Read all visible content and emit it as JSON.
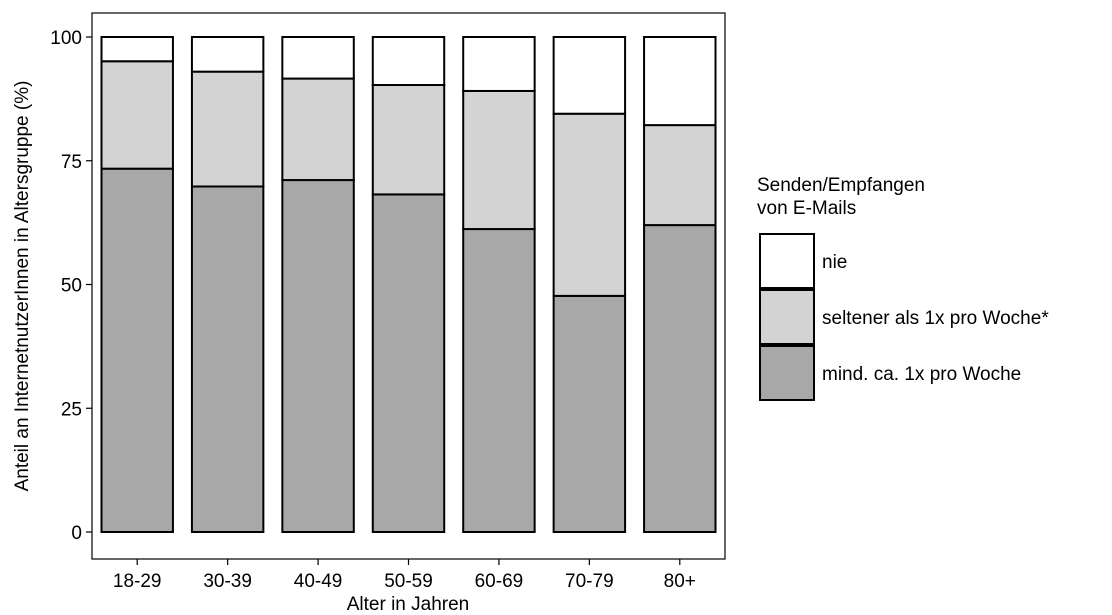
{
  "chart_data": {
    "type": "bar",
    "stacked": true,
    "xlabel": "Alter in Jahren",
    "ylabel": "Anteil an InternetnutzerInnen in Altersgruppe (%)",
    "ylim": [
      0,
      100
    ],
    "yticks": [
      0,
      25,
      50,
      75,
      100
    ],
    "grid": false,
    "legend_position": "right",
    "legend_title_lines": [
      "Senden/Empfangen",
      "von E-Mails"
    ],
    "categories": [
      "18-29",
      "30-39",
      "40-49",
      "50-59",
      "60-69",
      "70-79",
      "80+"
    ],
    "series": [
      {
        "name": "mind. ca. 1x pro Woche",
        "color": "#a8a8a8",
        "values": [
          73.4,
          69.8,
          71.1,
          68.2,
          61.2,
          47.7,
          62.0
        ]
      },
      {
        "name": "seltener als 1x pro Woche*",
        "color": "#d3d3d3",
        "values": [
          21.7,
          23.2,
          20.5,
          22.1,
          27.9,
          36.8,
          20.2
        ]
      },
      {
        "name": "nie",
        "color": "#ffffff",
        "values": [
          4.9,
          7.0,
          8.4,
          9.7,
          10.9,
          15.5,
          17.8
        ]
      }
    ],
    "legend_order": [
      "nie",
      "seltener als 1x pro Woche*",
      "mind. ca. 1x pro Woche"
    ]
  }
}
